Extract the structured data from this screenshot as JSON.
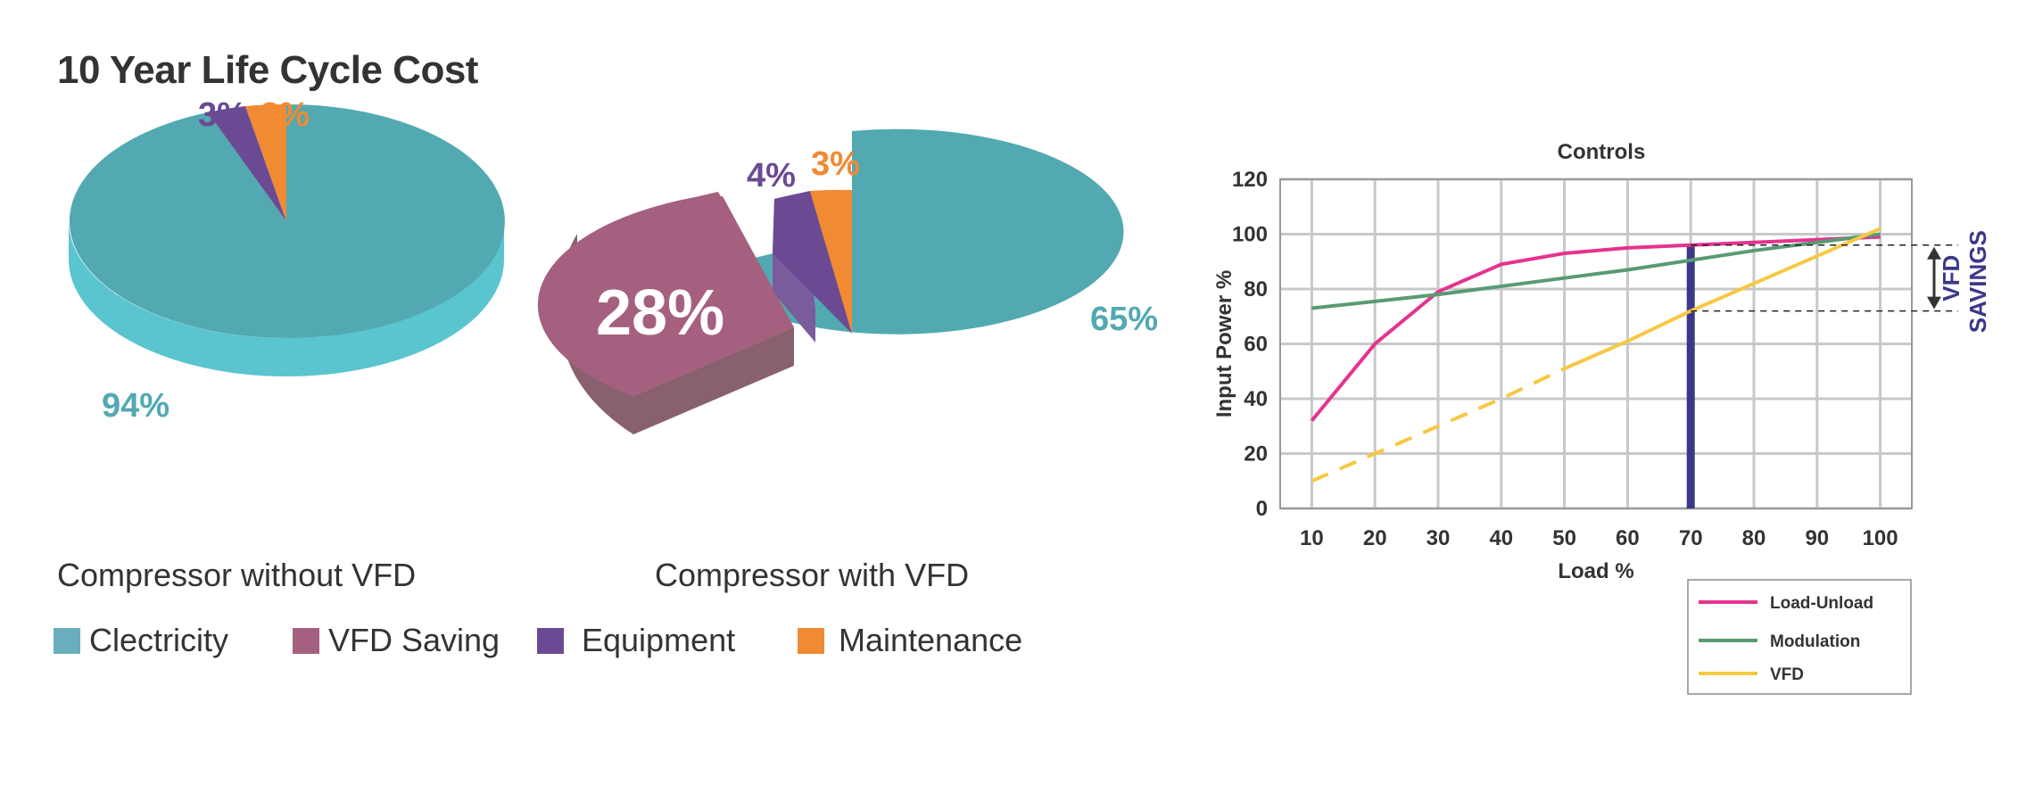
{
  "page": {
    "title": "10 Year Life Cycle Cost"
  },
  "legend": [
    {
      "label": "Clectricity",
      "color": "#6aaebd"
    },
    {
      "label": "VFD Saving",
      "color": "#a6607f"
    },
    {
      "label": "Equipment",
      "color": "#6b4a93"
    },
    {
      "label": "Maintenance",
      "color": "#f08a33"
    }
  ],
  "chart_data": [
    {
      "type": "pie",
      "name": "Compressor without VFD",
      "categories": [
        "Clectricity",
        "Equipment",
        "Maintenance"
      ],
      "values": [
        94,
        3,
        3
      ],
      "labels": [
        "94%",
        "3%",
        "3%"
      ]
    },
    {
      "type": "pie",
      "name": "Compressor with VFD",
      "categories": [
        "Clectricity",
        "VFD Saving",
        "Equipment",
        "Maintenance"
      ],
      "values": [
        65,
        28,
        4,
        3
      ],
      "labels": [
        "65%",
        "28%",
        "4%",
        "3%"
      ],
      "exploded": "VFD Saving"
    },
    {
      "type": "line",
      "title": "Controls",
      "xlabel": "Load %",
      "ylabel": "Input Power %",
      "x": [
        10,
        20,
        30,
        40,
        50,
        60,
        70,
        80,
        90,
        100
      ],
      "xlim": [
        5,
        105
      ],
      "ylim": [
        0,
        120
      ],
      "yticks": [
        0,
        20,
        40,
        60,
        80,
        100,
        120
      ],
      "grid": true,
      "legend_position": "bottom-right",
      "series": [
        {
          "name": "Load-Unload",
          "color": "#e5338f",
          "values": [
            32,
            60,
            79,
            89,
            93,
            95,
            96,
            97,
            98,
            99
          ]
        },
        {
          "name": "Modulation",
          "color": "#5a9a73",
          "values": [
            73,
            75.5,
            78,
            81,
            84,
            87,
            90.5,
            94,
            97,
            100
          ]
        },
        {
          "name": "VFD",
          "color": "#f7c843",
          "values": [
            10,
            20,
            30,
            40,
            51,
            61,
            72,
            82,
            92,
            102
          ],
          "dashed_until_x": 50
        }
      ],
      "marker_line": {
        "x": 70,
        "color": "#3a3888"
      },
      "savings": {
        "label_top": "VFD",
        "label_bottom": "SAVINGS",
        "from": 72,
        "to": 96
      }
    }
  ]
}
